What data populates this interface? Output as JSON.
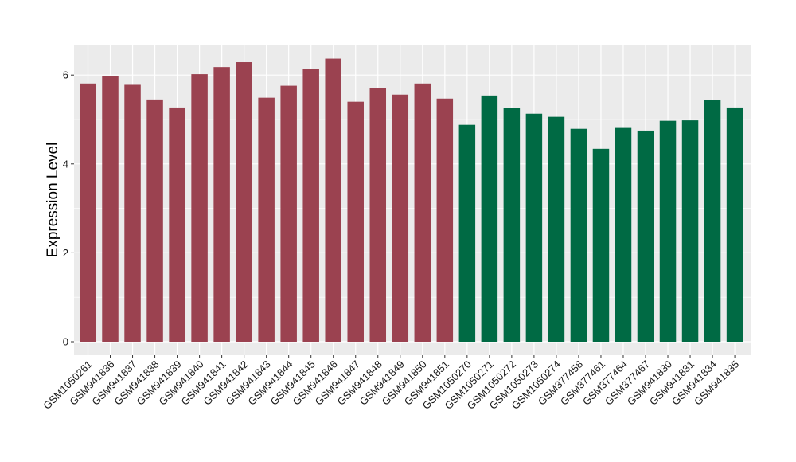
{
  "chart_data": {
    "type": "bar",
    "title": "",
    "xlabel": "",
    "ylabel": "Expression Level",
    "ylim": [
      0,
      6.6
    ],
    "yticks": [
      0,
      2,
      4,
      6
    ],
    "grid": true,
    "legend": "none",
    "colors": {
      "panel": "#ebebeb",
      "grid": "#ffffff",
      "group1": "#9b4250",
      "group2": "#006a44"
    },
    "categories": [
      "GSM1050261",
      "GSM941836",
      "GSM941837",
      "GSM941838",
      "GSM941839",
      "GSM941840",
      "GSM941841",
      "GSM941842",
      "GSM941843",
      "GSM941844",
      "GSM941845",
      "GSM941846",
      "GSM941847",
      "GSM941848",
      "GSM941849",
      "GSM941850",
      "GSM941851",
      "GSM1050270",
      "GSM1050271",
      "GSM1050272",
      "GSM1050273",
      "GSM1050274",
      "GSM377458",
      "GSM377461",
      "GSM377464",
      "GSM377467",
      "GSM941830",
      "GSM941831",
      "GSM941834",
      "GSM941835"
    ],
    "values": [
      5.81,
      5.98,
      5.78,
      5.45,
      5.27,
      6.02,
      6.18,
      6.29,
      5.49,
      5.76,
      6.13,
      6.37,
      5.4,
      5.7,
      5.56,
      5.81,
      5.47,
      4.88,
      5.54,
      5.26,
      5.13,
      5.06,
      4.79,
      4.34,
      4.81,
      4.75,
      4.97,
      4.98,
      5.43,
      5.27
    ],
    "group_of_bar": [
      1,
      1,
      1,
      1,
      1,
      1,
      1,
      1,
      1,
      1,
      1,
      1,
      1,
      1,
      1,
      1,
      1,
      2,
      2,
      2,
      2,
      2,
      2,
      2,
      2,
      2,
      2,
      2,
      2,
      2
    ]
  }
}
